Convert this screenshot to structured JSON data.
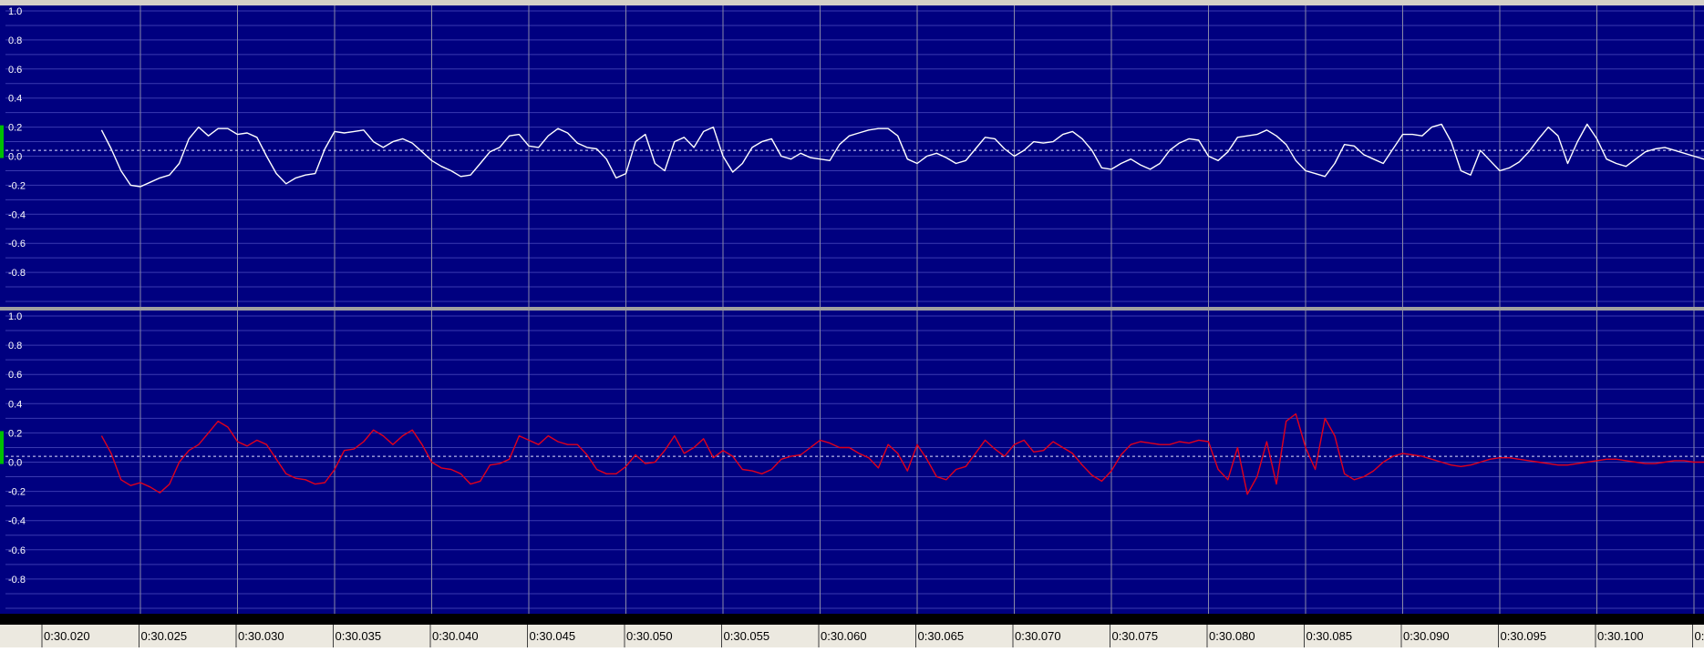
{
  "chart_data": [
    {
      "type": "line",
      "title": "",
      "xlabel": "",
      "ylabel": "",
      "channel": "left",
      "ylim": [
        -1.0,
        1.0
      ],
      "y_ticks": [
        1.0,
        0.8,
        0.6,
        0.4,
        0.2,
        0.0,
        -0.2,
        -0.4,
        -0.6,
        -0.8
      ],
      "grid": true,
      "reference_line": 0.04,
      "line_color": "#ffffff",
      "series": [
        {
          "x": [
            0.018,
            0.0185,
            0.019,
            0.0195,
            0.02,
            0.0205,
            0.021,
            0.0215,
            0.022,
            0.0225,
            0.023,
            0.0235,
            0.024,
            0.0245,
            0.025,
            0.0255,
            0.026,
            0.0265,
            0.027,
            0.0275,
            0.028,
            0.0285,
            0.029,
            0.0295,
            0.03,
            0.0305,
            0.031,
            0.0315,
            0.032,
            0.0325,
            0.033,
            0.0335,
            0.034,
            0.0345,
            0.035,
            0.0355,
            0.036,
            0.0365,
            0.037,
            0.0375,
            0.038,
            0.0385,
            0.039,
            0.0395,
            0.04,
            0.0405,
            0.041,
            0.0415,
            0.042,
            0.0425,
            0.043,
            0.0435,
            0.044,
            0.0445,
            0.045,
            0.0455,
            0.046,
            0.0465,
            0.047,
            0.0475,
            0.048,
            0.0485,
            0.049,
            0.0495,
            0.05,
            0.0505,
            0.051,
            0.0515,
            0.052,
            0.0525,
            0.053,
            0.0535,
            0.054,
            0.0545,
            0.055,
            0.0555,
            0.056,
            0.0565,
            0.057,
            0.0575,
            0.058,
            0.0585,
            0.059,
            0.0595,
            0.06,
            0.0605,
            0.061,
            0.0615,
            0.062,
            0.0625,
            0.063,
            0.0635,
            0.064,
            0.0645,
            0.065,
            0.0655,
            0.066,
            0.0665,
            0.067,
            0.0675,
            0.068,
            0.0685,
            0.069,
            0.0695,
            0.07,
            0.0705,
            0.071,
            0.0715,
            0.072,
            0.0725,
            0.073,
            0.0735,
            0.074,
            0.0745,
            0.075,
            0.0755,
            0.076,
            0.0765,
            0.077,
            0.0775,
            0.078,
            0.0785,
            0.079,
            0.0795,
            0.08,
            0.0805,
            0.081,
            0.0815,
            0.082,
            0.0825,
            0.083,
            0.0835,
            0.084,
            0.0845,
            0.085,
            0.0855,
            0.086,
            0.0865,
            0.087,
            0.0875,
            0.088,
            0.0885,
            0.089,
            0.0895,
            0.09,
            0.0905,
            0.091,
            0.0915,
            0.092,
            0.0925,
            0.093,
            0.0935,
            0.094,
            0.0945,
            0.095,
            0.0955,
            0.096,
            0.0965,
            0.097,
            0.0975,
            0.098,
            0.0985,
            0.099,
            0.0995,
            0.1,
            0.1005,
            0.101,
            0.1015,
            0.102,
            0.1025,
            0.103
          ],
          "y": [
            0.18,
            0.05,
            -0.1,
            -0.2,
            -0.21,
            -0.18,
            -0.15,
            -0.13,
            -0.05,
            0.12,
            0.2,
            0.14,
            0.19,
            0.19,
            0.15,
            0.16,
            0.13,
            0.0,
            -0.12,
            -0.19,
            -0.15,
            -0.13,
            -0.12,
            0.05,
            0.17,
            0.16,
            0.17,
            0.18,
            0.1,
            0.06,
            0.1,
            0.12,
            0.09,
            0.03,
            -0.03,
            -0.07,
            -0.1,
            -0.14,
            -0.13,
            -0.05,
            0.03,
            0.06,
            0.14,
            0.15,
            0.07,
            0.06,
            0.14,
            0.19,
            0.16,
            0.09,
            0.06,
            0.05,
            -0.02,
            -0.15,
            -0.12,
            0.1,
            0.15,
            -0.05,
            -0.1,
            0.1,
            0.13,
            0.06,
            0.17,
            0.2,
            0.0,
            -0.11,
            -0.05,
            0.06,
            0.1,
            0.12,
            0.0,
            -0.02,
            0.02,
            -0.01,
            -0.02,
            -0.03,
            0.08,
            0.14,
            0.16,
            0.18,
            0.19,
            0.19,
            0.14,
            -0.02,
            -0.05,
            0.0,
            0.02,
            -0.01,
            -0.05,
            -0.03,
            0.05,
            0.13,
            0.12,
            0.05,
            0.0,
            0.04,
            0.1,
            0.09,
            0.1,
            0.15,
            0.17,
            0.12,
            0.04,
            -0.08,
            -0.09,
            -0.05,
            -0.02,
            -0.06,
            -0.09,
            -0.05,
            0.04,
            0.09,
            0.12,
            0.11,
            0.0,
            -0.03,
            0.03,
            0.13,
            0.14,
            0.15,
            0.18,
            0.14,
            0.08,
            -0.03,
            -0.1,
            -0.12,
            -0.14,
            -0.05,
            0.08,
            0.07,
            0.01,
            -0.02,
            -0.05,
            0.05,
            0.15,
            0.15,
            0.14,
            0.2,
            0.22,
            0.1,
            -0.1,
            -0.13,
            0.04,
            -0.03,
            -0.1,
            -0.08,
            -0.04,
            0.03,
            0.12,
            0.2,
            0.14,
            -0.05,
            0.1,
            0.22,
            0.12,
            -0.02,
            -0.05,
            -0.07,
            -0.02,
            0.03,
            0.05,
            0.06,
            0.04,
            0.02,
            0.0,
            -0.02,
            -0.03,
            -0.02,
            0.01,
            0.04,
            0.05
          ]
        }
      ]
    },
    {
      "type": "line",
      "title": "",
      "xlabel": "",
      "ylabel": "",
      "channel": "right",
      "ylim": [
        -1.0,
        1.0
      ],
      "y_ticks": [
        1.0,
        0.8,
        0.6,
        0.4,
        0.2,
        0.0,
        -0.2,
        -0.4,
        -0.6,
        -0.8
      ],
      "grid": true,
      "reference_line": 0.04,
      "line_color": "#e0001c",
      "series": [
        {
          "x": [
            0.018,
            0.0185,
            0.019,
            0.0195,
            0.02,
            0.0205,
            0.021,
            0.0215,
            0.022,
            0.0225,
            0.023,
            0.0235,
            0.024,
            0.0245,
            0.025,
            0.0255,
            0.026,
            0.0265,
            0.027,
            0.0275,
            0.028,
            0.0285,
            0.029,
            0.0295,
            0.03,
            0.0305,
            0.031,
            0.0315,
            0.032,
            0.0325,
            0.033,
            0.0335,
            0.034,
            0.0345,
            0.035,
            0.0355,
            0.036,
            0.0365,
            0.037,
            0.0375,
            0.038,
            0.0385,
            0.039,
            0.0395,
            0.04,
            0.0405,
            0.041,
            0.0415,
            0.042,
            0.0425,
            0.043,
            0.0435,
            0.044,
            0.0445,
            0.045,
            0.0455,
            0.046,
            0.0465,
            0.047,
            0.0475,
            0.048,
            0.0485,
            0.049,
            0.0495,
            0.05,
            0.0505,
            0.051,
            0.0515,
            0.052,
            0.0525,
            0.053,
            0.0535,
            0.054,
            0.0545,
            0.055,
            0.0555,
            0.056,
            0.0565,
            0.057,
            0.0575,
            0.058,
            0.0585,
            0.059,
            0.0595,
            0.06,
            0.0605,
            0.061,
            0.0615,
            0.062,
            0.0625,
            0.063,
            0.0635,
            0.064,
            0.0645,
            0.065,
            0.0655,
            0.066,
            0.0665,
            0.067,
            0.0675,
            0.068,
            0.0685,
            0.069,
            0.0695,
            0.07,
            0.0705,
            0.071,
            0.0715,
            0.072,
            0.0725,
            0.073,
            0.0735,
            0.074,
            0.0745,
            0.075,
            0.0755,
            0.076,
            0.0765,
            0.077,
            0.0775,
            0.078,
            0.0785,
            0.079,
            0.0795,
            0.08,
            0.0805,
            0.081,
            0.0815,
            0.082,
            0.0825,
            0.083,
            0.0835,
            0.084,
            0.0845,
            0.085,
            0.0855,
            0.086,
            0.0865,
            0.087,
            0.0875,
            0.088,
            0.0885,
            0.089,
            0.0895,
            0.09,
            0.0905,
            0.091,
            0.0915,
            0.092,
            0.0925,
            0.093,
            0.0935,
            0.094,
            0.0945,
            0.095,
            0.0955,
            0.096,
            0.0965,
            0.097,
            0.0975,
            0.098,
            0.0985,
            0.099,
            0.0995,
            0.1,
            0.1005,
            0.101,
            0.1015,
            0.102,
            0.1025,
            0.103
          ],
          "y": [
            0.18,
            0.06,
            -0.12,
            -0.16,
            -0.14,
            -0.17,
            -0.21,
            -0.15,
            0.0,
            0.08,
            0.12,
            0.2,
            0.28,
            0.24,
            0.14,
            0.11,
            0.15,
            0.12,
            0.02,
            -0.08,
            -0.11,
            -0.12,
            -0.15,
            -0.14,
            -0.05,
            0.08,
            0.09,
            0.14,
            0.22,
            0.18,
            0.12,
            0.18,
            0.22,
            0.12,
            0.0,
            -0.04,
            -0.05,
            -0.08,
            -0.15,
            -0.13,
            -0.02,
            -0.01,
            0.02,
            0.18,
            0.15,
            0.12,
            0.18,
            0.14,
            0.12,
            0.12,
            0.05,
            -0.05,
            -0.08,
            -0.08,
            -0.03,
            0.05,
            -0.01,
            0.0,
            0.08,
            0.18,
            0.06,
            0.1,
            0.16,
            0.03,
            0.08,
            0.04,
            -0.05,
            -0.06,
            -0.08,
            -0.05,
            0.02,
            0.04,
            0.05,
            0.1,
            0.15,
            0.13,
            0.1,
            0.1,
            0.06,
            0.03,
            -0.04,
            0.12,
            0.06,
            -0.06,
            0.12,
            0.02,
            -0.1,
            -0.12,
            -0.05,
            -0.03,
            0.06,
            0.15,
            0.09,
            0.04,
            0.12,
            0.15,
            0.07,
            0.08,
            0.14,
            0.1,
            0.06,
            -0.02,
            -0.09,
            -0.13,
            -0.06,
            0.05,
            0.12,
            0.14,
            0.13,
            0.12,
            0.12,
            0.14,
            0.13,
            0.15,
            0.14,
            -0.05,
            -0.12,
            0.1,
            -0.22,
            -0.1,
            0.14,
            -0.15,
            0.28,
            0.33,
            0.1,
            -0.05,
            0.3,
            0.18,
            -0.08,
            -0.12,
            -0.1,
            -0.06,
            0.0,
            0.04,
            0.06,
            0.05,
            0.04,
            0.02,
            0.0,
            -0.02,
            -0.03,
            -0.02,
            0.0,
            0.02,
            0.03,
            0.03,
            0.02,
            0.01,
            0.0,
            -0.01,
            -0.02,
            -0.02,
            -0.01,
            0.0,
            0.01,
            0.02,
            0.02,
            0.01,
            0.0,
            -0.01,
            -0.01,
            0.0,
            0.01,
            0.01,
            0.0,
            0.0,
            0.0,
            0.0,
            0.0,
            0.0,
            0.0
          ]
        }
      ]
    }
  ],
  "timeline": {
    "ticks": [
      "0:30.020",
      "0:30.025",
      "0:30.030",
      "0:30.035",
      "0:30.040",
      "0:30.045",
      "0:30.050",
      "0:30.055",
      "0:30.060",
      "0:30.065",
      "0:30.070",
      "0:30.075",
      "0:30.080",
      "0:30.085",
      "0:30.090",
      "0:30.095",
      "0:30.100",
      "0:"
    ],
    "tick_times": [
      0.02,
      0.025,
      0.03,
      0.035,
      0.04,
      0.045,
      0.05,
      0.055,
      0.06,
      0.065,
      0.07,
      0.075,
      0.08,
      0.085,
      0.09,
      0.095,
      0.1,
      0.105
    ]
  },
  "colors": {
    "background": "#000080",
    "grid_vertical": "#8888a8",
    "grid_horizontal": "#3a3ab0",
    "axis_label": "#ffffff",
    "left_channel_line": "#ffffff",
    "right_channel_line": "#e0001c",
    "marker_green": "#00c000",
    "timeline_strip": "#000000"
  }
}
